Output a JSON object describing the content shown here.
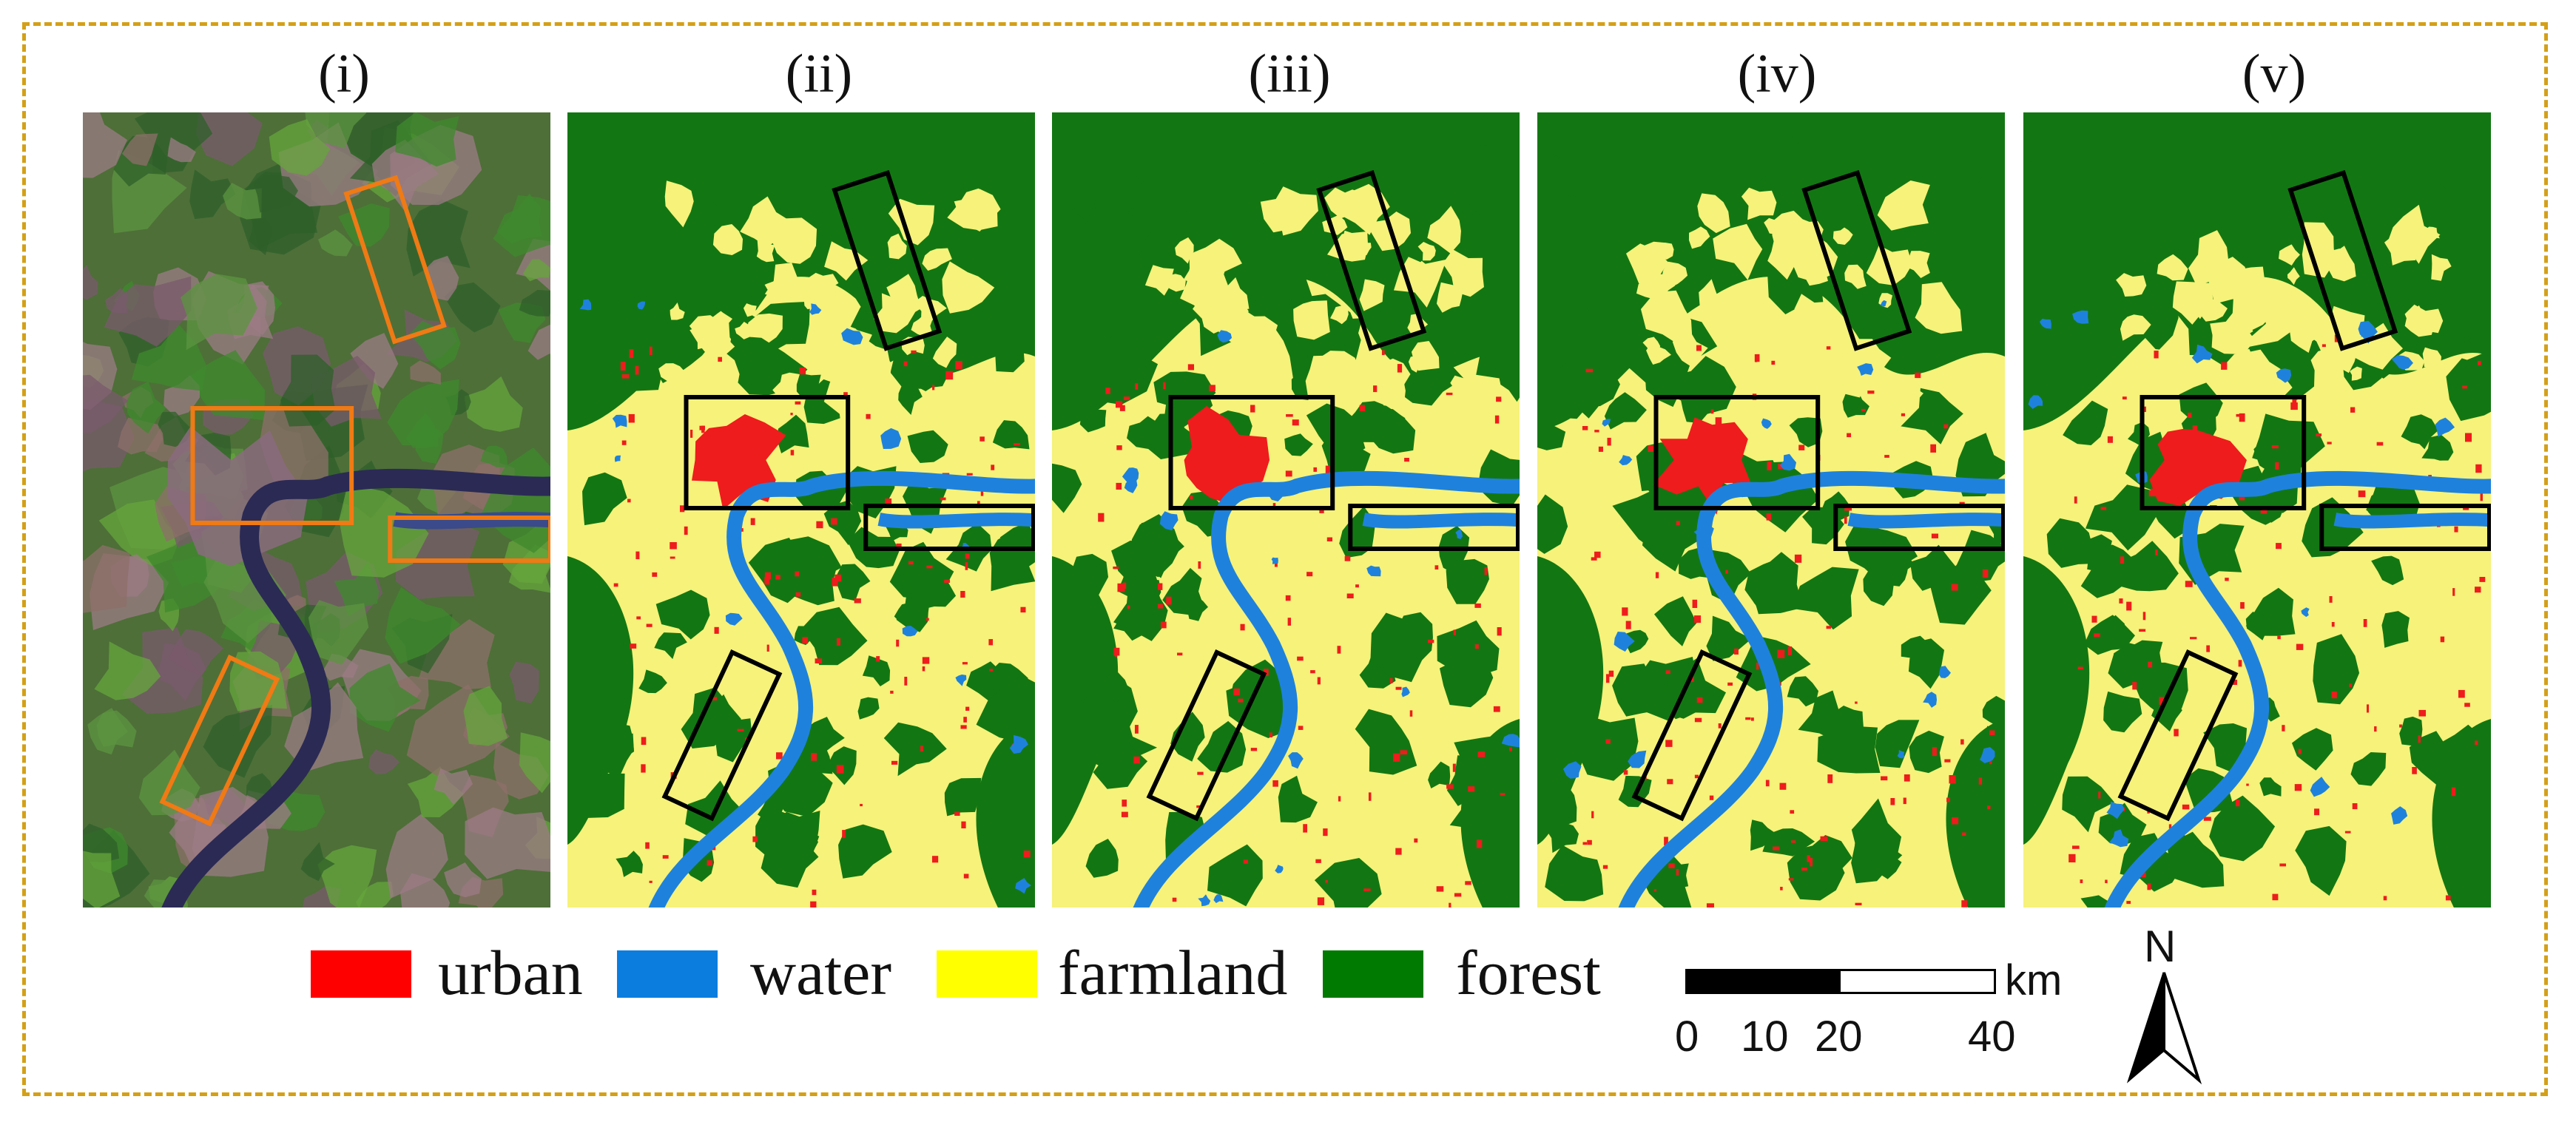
{
  "panels": [
    {
      "label": "(i)",
      "kind": "satellite"
    },
    {
      "label": "(ii)",
      "kind": "classified"
    },
    {
      "label": "(iii)",
      "kind": "classified"
    },
    {
      "label": "(iv)",
      "kind": "classified"
    },
    {
      "label": "(v)",
      "kind": "classified"
    }
  ],
  "legend": [
    {
      "label": "urban",
      "color": "#ff0000"
    },
    {
      "label": "water",
      "color": "#0a7ddf"
    },
    {
      "label": "farmland",
      "color": "#ffff00"
    },
    {
      "label": "forest",
      "color": "#007a00"
    }
  ],
  "colors": {
    "urban": "#ee1c1c",
    "water": "#1e82dd",
    "farmland": "#f6f27a",
    "forest": "#127712",
    "highlight_satellite": "#f07a14",
    "highlight_classified": "#000000",
    "frame": "#d4a017"
  },
  "scale_bar": {
    "ticks": [
      "0",
      "10",
      "20",
      "40"
    ],
    "unit": "km"
  },
  "north_arrow": {
    "letter": "N"
  }
}
